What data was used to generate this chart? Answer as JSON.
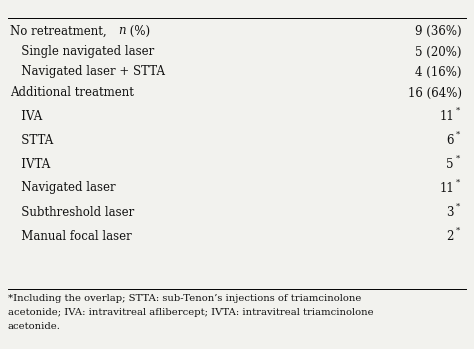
{
  "rows": [
    {
      "label": "No retreatment, ",
      "label_n": "n",
      "label_rest": " (%)",
      "value": "9 (36%)",
      "indent": 0,
      "bold": false,
      "has_super": false,
      "special_n": true
    },
    {
      "label": "   Single navigated laser",
      "value": "5 (20%)",
      "indent": 1,
      "bold": false,
      "has_super": false,
      "special_n": false
    },
    {
      "label": "   Navigated laser + STTA",
      "value": "4 (16%)",
      "indent": 1,
      "bold": false,
      "has_super": false,
      "special_n": false
    },
    {
      "label": "Additional treatment",
      "value": "16 (64%)",
      "indent": 0,
      "bold": false,
      "has_super": false,
      "special_n": false
    },
    {
      "label": "   IVA",
      "value": "11",
      "indent": 1,
      "bold": false,
      "has_super": true,
      "special_n": false
    },
    {
      "label": "   STTA",
      "value": "6",
      "indent": 1,
      "bold": false,
      "has_super": true,
      "special_n": false
    },
    {
      "label": "   IVTA",
      "value": "5",
      "indent": 1,
      "bold": false,
      "has_super": true,
      "special_n": false
    },
    {
      "label": "   Navigated laser",
      "value": "11",
      "indent": 1,
      "bold": false,
      "has_super": true,
      "special_n": false
    },
    {
      "label": "   Subthreshold laser",
      "value": "3",
      "indent": 1,
      "bold": false,
      "has_super": true,
      "special_n": false
    },
    {
      "label": "   Manual focal laser",
      "value": "2",
      "indent": 1,
      "bold": false,
      "has_super": true,
      "special_n": false
    }
  ],
  "footnote_lines": [
    "*Including the overlap; STTA: sub-Tenon’s injections of triamcinolone",
    "acetonide; IVA: intravitreal aflibercept; IVTA: intravitreal triamcinolone",
    "acetonide."
  ],
  "bg_color": "#f2f2ee",
  "text_color": "#111111",
  "font_size": 8.5,
  "footnote_font_size": 7.2
}
